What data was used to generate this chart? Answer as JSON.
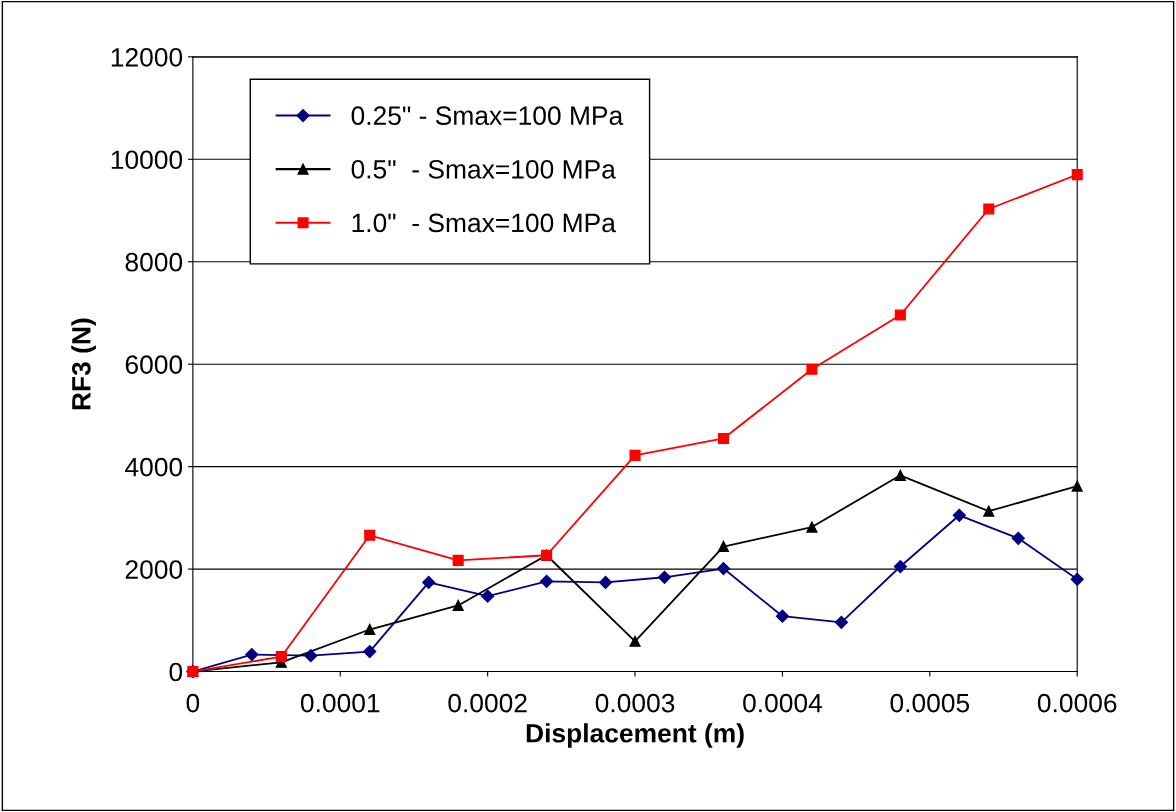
{
  "chart_data": {
    "type": "line",
    "xlabel": "Displacement (m)",
    "ylabel": "RF3 (N)",
    "xlim": [
      0,
      0.0006
    ],
    "xticks": [
      {
        "value": 0,
        "label": "0"
      },
      {
        "value": 0.0001,
        "label": "0.0001"
      },
      {
        "value": 0.0002,
        "label": "0.0002"
      },
      {
        "value": 0.0003,
        "label": "0.0003"
      },
      {
        "value": 0.0004,
        "label": "0.0004"
      },
      {
        "value": 0.0005,
        "label": "0.0005"
      },
      {
        "value": 0.0006,
        "label": "0.0006"
      }
    ],
    "ylim": [
      0,
      12000
    ],
    "yticks": [
      0,
      2000,
      4000,
      6000,
      8000,
      10000,
      12000
    ],
    "grid": "y",
    "legend": "top left",
    "line_style": "solid",
    "series": [
      {
        "name": "0.25\" - Smax=100 MPa",
        "color": "#000080",
        "marker": "diamond",
        "x": [
          0,
          4e-05,
          8e-05,
          0.00012,
          0.00016,
          0.0002,
          0.00024,
          0.00028,
          0.00032,
          0.00036,
          0.0004,
          0.00044,
          0.00048,
          0.00052,
          0.00056,
          0.0006
        ],
        "values": [
          0,
          330,
          310,
          390,
          1740,
          1470,
          1760,
          1740,
          1840,
          2010,
          1080,
          960,
          2050,
          3050,
          2600,
          1800
        ]
      },
      {
        "name": "0.5\"  - Smax=100 MPa",
        "color": "#000000",
        "marker": "triangle",
        "x": [
          0,
          6e-05,
          0.00012,
          0.00018,
          0.00024,
          0.0003,
          0.00036,
          0.00042,
          0.00048,
          0.00054,
          0.0006
        ],
        "values": [
          0,
          180,
          820,
          1290,
          2270,
          590,
          2440,
          2820,
          3830,
          3130,
          3620
        ]
      },
      {
        "name": "1.0\"  - Smax=100 MPa",
        "color": "#ff0000",
        "marker": "square",
        "x": [
          0,
          6e-05,
          0.00012,
          0.00018,
          0.00024,
          0.0003,
          0.00036,
          0.00042,
          0.00048,
          0.00054,
          0.0006
        ],
        "values": [
          0,
          290,
          2660,
          2170,
          2270,
          4220,
          4550,
          5900,
          6960,
          9030,
          9700
        ]
      }
    ]
  }
}
